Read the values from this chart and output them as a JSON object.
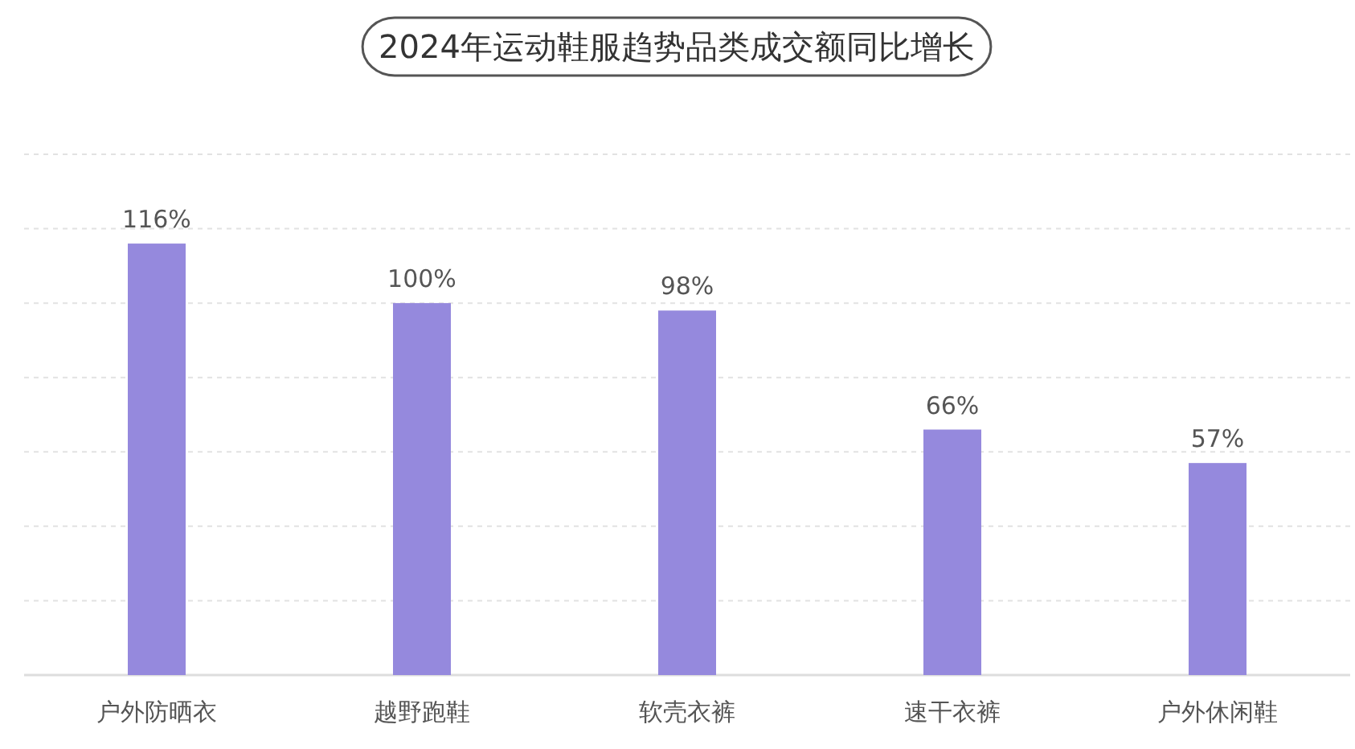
{
  "chart_data": {
    "type": "bar",
    "title": "2024年运动鞋服趋势品类成交额同比增长",
    "categories": [
      "户外防晒衣",
      "越野跑鞋",
      "软壳衣裤",
      "速干衣裤",
      "户外休闲鞋"
    ],
    "values": [
      116,
      100,
      98,
      66,
      57
    ],
    "value_labels": [
      "116%",
      "100%",
      "98%",
      "66%",
      "57%"
    ],
    "color": "#9589dd",
    "ylim": [
      0,
      140
    ],
    "yticks": [
      {
        "value": 20,
        "label": null
      },
      {
        "value": 40,
        "label": null
      },
      {
        "value": 60,
        "label": null
      },
      {
        "value": 80,
        "label": null
      },
      {
        "value": 100,
        "label": null
      },
      {
        "value": 120,
        "label": null
      },
      {
        "value": 140,
        "label": null
      }
    ],
    "grid": "y",
    "tick_labels": "x"
  }
}
